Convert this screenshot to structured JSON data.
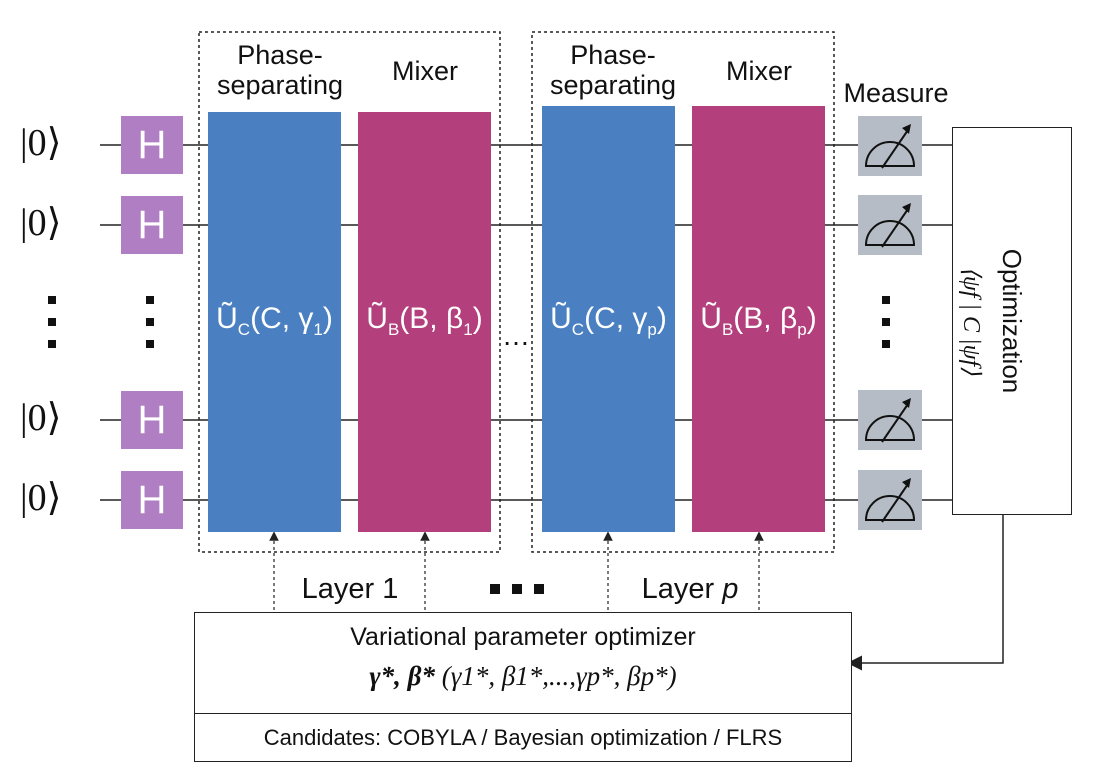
{
  "qubits": {
    "ket_label": "|0⟩",
    "hadamard_label": "H"
  },
  "layers": [
    {
      "phase_header": "Phase-\nseparating",
      "mixer_header": "Mixer",
      "phase_gate": {
        "prefix": "Ũ",
        "sub": "C",
        "args": "(C, γ",
        "argsub": "1",
        "close": ")"
      },
      "mixer_gate": {
        "prefix": "Ũ",
        "sub": "B",
        "args": "(B, β",
        "argsub": "1",
        "close": ")"
      },
      "layer_label": "Layer 1"
    },
    {
      "phase_header": "Phase-\nseparating",
      "mixer_header": "Mixer",
      "phase_gate": {
        "prefix": "Ũ",
        "sub": "C",
        "args": "(C, γ",
        "argsub": "p",
        "close": ")"
      },
      "mixer_gate": {
        "prefix": "Ũ",
        "sub": "B",
        "args": "(B, β",
        "argsub": "p",
        "close": ")"
      },
      "layer_label": "Layer ",
      "layer_label_var": "p"
    }
  ],
  "measure_label": "Measure",
  "optimization": {
    "label": "Optimization",
    "expectation": "⟨ψf | C |ψf⟩"
  },
  "optimizer": {
    "title": "Variational parameter optimizer",
    "formula_bold": "γ*, β*",
    "formula_rest": "(γ1*, β1*,...,γp*, βp*)",
    "candidates": "Candidates: COBYLA / Bayesian optimization / FLRS"
  },
  "colors": {
    "hadamard": "#b07ec2",
    "phase_separating": "#4a80c2",
    "mixer": "#b3407c",
    "measure": "#b5bcc5"
  }
}
